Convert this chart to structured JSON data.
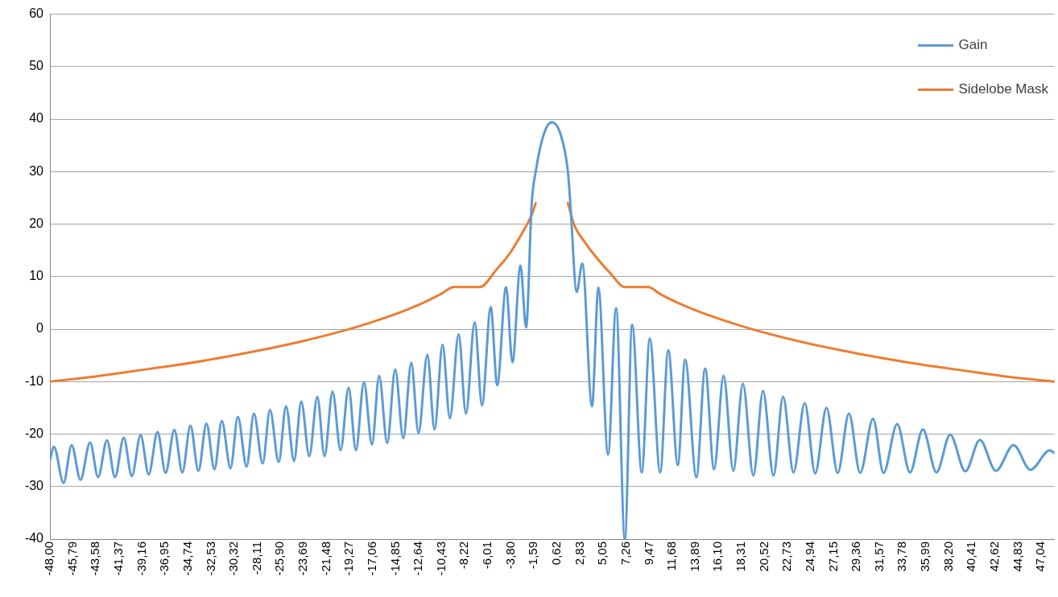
{
  "chart_data": {
    "type": "line",
    "xlim": [
      -48,
      48.33
    ],
    "xticks": [
      {
        "value": -48,
        "label": "-48,00"
      },
      {
        "value": -45.79,
        "label": "-45,79"
      },
      {
        "value": -43.58,
        "label": "-43,58"
      },
      {
        "value": -41.37,
        "label": "-41,37"
      },
      {
        "value": -39.16,
        "label": "-39,16"
      },
      {
        "value": -36.95,
        "label": "-36,95"
      },
      {
        "value": -34.74,
        "label": "-34,74"
      },
      {
        "value": -32.53,
        "label": "-32,53"
      },
      {
        "value": -30.32,
        "label": "-30,32"
      },
      {
        "value": -28.11,
        "label": "-28,11"
      },
      {
        "value": -25.9,
        "label": "-25,90"
      },
      {
        "value": -23.69,
        "label": "-23,69"
      },
      {
        "value": -21.48,
        "label": "-21,48"
      },
      {
        "value": -19.27,
        "label": "-19,27"
      },
      {
        "value": -17.06,
        "label": "-17,06"
      },
      {
        "value": -14.85,
        "label": "-14,85"
      },
      {
        "value": -12.64,
        "label": "-12,64"
      },
      {
        "value": -10.43,
        "label": "-10,43"
      },
      {
        "value": -8.22,
        "label": "-8,22"
      },
      {
        "value": -6.01,
        "label": "-6,01"
      },
      {
        "value": -3.8,
        "label": "-3,80"
      },
      {
        "value": -1.59,
        "label": "-1,59"
      },
      {
        "value": 0.62,
        "label": "0,62"
      },
      {
        "value": 2.83,
        "label": "2,83"
      },
      {
        "value": 5.05,
        "label": "5,05"
      },
      {
        "value": 7.26,
        "label": "7,26"
      },
      {
        "value": 9.47,
        "label": "9,47"
      },
      {
        "value": 11.68,
        "label": "11,68"
      },
      {
        "value": 13.89,
        "label": "13,89"
      },
      {
        "value": 16.1,
        "label": "16,10"
      },
      {
        "value": 18.31,
        "label": "18,31"
      },
      {
        "value": 20.52,
        "label": "20,52"
      },
      {
        "value": 22.73,
        "label": "22,73"
      },
      {
        "value": 24.94,
        "label": "24,94"
      },
      {
        "value": 27.15,
        "label": "27,15"
      },
      {
        "value": 29.36,
        "label": "29,36"
      },
      {
        "value": 31.57,
        "label": "31,57"
      },
      {
        "value": 33.78,
        "label": "33,78"
      },
      {
        "value": 35.99,
        "label": "35,99"
      },
      {
        "value": 38.2,
        "label": "38,20"
      },
      {
        "value": 40.41,
        "label": "40,41"
      },
      {
        "value": 42.62,
        "label": "42,62"
      },
      {
        "value": 44.83,
        "label": "44,83"
      },
      {
        "value": 47.04,
        "label": "47,04"
      }
    ],
    "ylim": [
      -40,
      60
    ],
    "yticks": [
      -40,
      -30,
      -20,
      -10,
      0,
      10,
      20,
      30,
      40,
      50,
      60
    ],
    "grid": "y",
    "legend": "top right",
    "series": [
      {
        "name": "Gain",
        "color": "#5b9bd5",
        "x": [
          -48,
          -47.62,
          -46.69,
          -45.92,
          -45.07,
          -44.15,
          -43.38,
          -42.53,
          -41.76,
          -40.92,
          -40.15,
          -39.3,
          -38.53,
          -37.68,
          -36.91,
          -36.07,
          -35.3,
          -34.53,
          -33.76,
          -32.99,
          -32.22,
          -31.52,
          -30.68,
          -29.98,
          -29.14,
          -28.44,
          -27.6,
          -26.9,
          -26.06,
          -25.36,
          -24.59,
          -23.9,
          -23.13,
          -22.36,
          -21.67,
          -20.9,
          -20.13,
          -19.36,
          -18.66,
          -17.89,
          -17.12,
          -16.43,
          -15.66,
          -14.89,
          -14.12,
          -13.35,
          -12.66,
          -11.81,
          -11.12,
          -10.35,
          -9.65,
          -8.81,
          -8.11,
          -7.27,
          -6.57,
          -5.73,
          -5.11,
          -4.26,
          -3.65,
          -2.88,
          -2.34,
          -1.8,
          -1.42,
          -0.65,
          0.13,
          0.97,
          1.67,
          1.9,
          2.51,
          3.05,
          3.98,
          4.59,
          5.52,
          6.29,
          7.13,
          7.83,
          8.75,
          9.52,
          10.52,
          11.29,
          12.21,
          12.91,
          13.99,
          14.83,
          15.68,
          16.6,
          17.53,
          18.45,
          19.45,
          20.38,
          21.38,
          22.3,
          23.3,
          24.38,
          25.38,
          26.46,
          27.54,
          28.62,
          29.69,
          30.93,
          31.93,
          33.24,
          34.47,
          35.7,
          37.01,
          38.32,
          39.78,
          41.17,
          42.71,
          44.4,
          46.02,
          47.87,
          48.33
        ],
        "values": [
          -25,
          -22.4,
          -29.3,
          -22.1,
          -28.7,
          -21.6,
          -28.2,
          -21.2,
          -28.2,
          -20.7,
          -28,
          -20.2,
          -27.7,
          -19.6,
          -27.4,
          -19.2,
          -27.3,
          -18.4,
          -27,
          -18,
          -26.7,
          -17.5,
          -26.5,
          -16.7,
          -26.2,
          -16.1,
          -25.6,
          -15.4,
          -25.3,
          -14.7,
          -25.1,
          -13.8,
          -24.2,
          -12.9,
          -24.2,
          -11.9,
          -23.1,
          -11.2,
          -23.1,
          -10.1,
          -22,
          -8.9,
          -21.7,
          -7.7,
          -20.8,
          -6.4,
          -19.8,
          -4.9,
          -19.1,
          -3,
          -17,
          -1,
          -16.1,
          1.3,
          -14.5,
          4.2,
          -10.7,
          8,
          -6.3,
          12.1,
          0.3,
          24,
          30,
          37.1,
          39.4,
          37.1,
          30,
          24,
          7.1,
          12.5,
          -14.7,
          7.9,
          -23.9,
          4,
          -40,
          0.8,
          -27.3,
          -1.8,
          -27.3,
          -4,
          -25.9,
          -5.8,
          -28.2,
          -7.5,
          -26.7,
          -8.9,
          -27,
          -10.4,
          -27.9,
          -11.8,
          -27.9,
          -12.9,
          -27.3,
          -14.1,
          -27.5,
          -15,
          -27.4,
          -16.1,
          -27.4,
          -17.1,
          -27.4,
          -18.1,
          -27.3,
          -19.1,
          -27.3,
          -20.1,
          -27.1,
          -21.1,
          -27,
          -22.1,
          -26.8,
          -23.1,
          -23.6
        ]
      },
      {
        "name": "Sidelobe Mask",
        "color": "#ed7d31",
        "x": [
          -48,
          -44,
          -40,
          -36,
          -32,
          -28,
          -24,
          -20,
          -17,
          -14,
          -12,
          -10.5,
          -9.27,
          -6.8,
          -5.11,
          -4.03,
          -2.72,
          -1.8,
          -1.42,
          0,
          1.67,
          2.28,
          3.2,
          4.21,
          5.75,
          7.13,
          9.37,
          10.5,
          12,
          14,
          17,
          20,
          24,
          28,
          32,
          36,
          40,
          44,
          48.33
        ],
        "values": [
          -10,
          -9.1,
          -8,
          -6.9,
          -5.6,
          -4.1,
          -2.4,
          -0.4,
          1.4,
          3.5,
          5.2,
          6.7,
          8,
          8,
          11.5,
          14.1,
          18.3,
          21.8,
          24,
          null,
          24,
          19.8,
          16.8,
          14.1,
          10.6,
          8,
          8,
          6.7,
          5.2,
          3.5,
          1.4,
          -0.4,
          -2.4,
          -4.1,
          -5.6,
          -6.9,
          -8,
          -9.1,
          -10
        ]
      }
    ]
  }
}
